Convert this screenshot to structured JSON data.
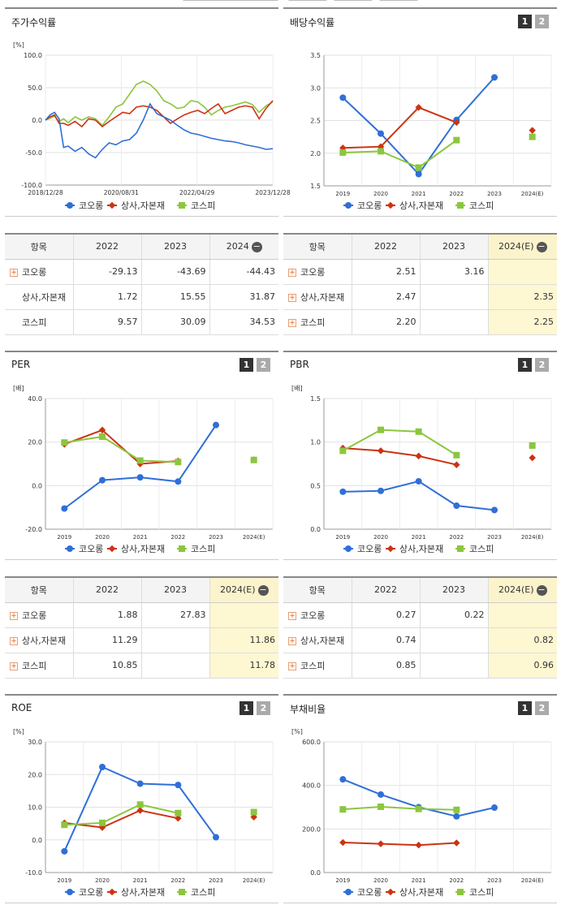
{
  "colors": {
    "kolon": "#2f6fd8",
    "sangsa": "#cc3311",
    "kospi": "#8cc63f",
    "highlight": "#fdf7d2"
  },
  "legend": [
    "코오롱",
    "상사,자본재",
    "코스피"
  ],
  "panels": {
    "stock": {
      "title": "주가수익률"
    },
    "div": {
      "title": "배당수익률",
      "btn1": "1",
      "btn2": "2"
    },
    "per": {
      "title": "PER",
      "btn1": "1",
      "btn2": "2"
    },
    "pbr": {
      "title": "PBR",
      "btn1": "1",
      "btn2": "2"
    },
    "roe": {
      "title": "ROE",
      "btn1": "1",
      "btn2": "2"
    },
    "debt": {
      "title": "부채비율",
      "btn1": "1",
      "btn2": "2"
    }
  },
  "tables": {
    "stock": {
      "headers": [
        "항목",
        "2022",
        "2023",
        "2024"
      ],
      "rows": [
        {
          "name": "코오롱",
          "plus": true,
          "v": [
            "-29.13",
            "-43.69",
            "-44.43"
          ]
        },
        {
          "name": "상사,자본재",
          "plus": false,
          "v": [
            "1.72",
            "15.55",
            "31.87"
          ]
        },
        {
          "name": "코스피",
          "plus": false,
          "v": [
            "9.57",
            "30.09",
            "34.53"
          ]
        }
      ]
    },
    "div": {
      "headers": [
        "항목",
        "2022",
        "2023",
        "2024(E)"
      ],
      "rows": [
        {
          "name": "코오롱",
          "plus": true,
          "v": [
            "2.51",
            "3.16",
            ""
          ]
        },
        {
          "name": "상사,자본재",
          "plus": true,
          "v": [
            "2.47",
            "",
            "2.35"
          ]
        },
        {
          "name": "코스피",
          "plus": true,
          "v": [
            "2.20",
            "",
            "2.25"
          ]
        }
      ]
    },
    "per": {
      "headers": [
        "항목",
        "2022",
        "2023",
        "2024(E)"
      ],
      "rows": [
        {
          "name": "코오롱",
          "plus": true,
          "v": [
            "1.88",
            "27.83",
            ""
          ]
        },
        {
          "name": "상사,자본재",
          "plus": true,
          "v": [
            "11.29",
            "",
            "11.86"
          ]
        },
        {
          "name": "코스피",
          "plus": true,
          "v": [
            "10.85",
            "",
            "11.78"
          ]
        }
      ]
    },
    "pbr": {
      "headers": [
        "항목",
        "2022",
        "2023",
        "2024(E)"
      ],
      "rows": [
        {
          "name": "코오롱",
          "plus": true,
          "v": [
            "0.27",
            "0.22",
            ""
          ]
        },
        {
          "name": "상사,자본재",
          "plus": true,
          "v": [
            "0.74",
            "",
            "0.82"
          ]
        },
        {
          "name": "코스피",
          "plus": true,
          "v": [
            "0.85",
            "",
            "0.96"
          ]
        }
      ]
    }
  },
  "chart_data": [
    {
      "id": "stock",
      "type": "line",
      "title": "주가수익률",
      "unit": "[%]",
      "ylim": [
        -100,
        100
      ],
      "yticks": [
        "100.0",
        "50.0",
        "0.0",
        "-50.0",
        "-100.0"
      ],
      "xticks": [
        "2018/12/28",
        "2020/08/31",
        "2022/04/29",
        "2023/12/28"
      ],
      "x": [
        0,
        0.02,
        0.04,
        0.06,
        0.08,
        0.1,
        0.13,
        0.16,
        0.19,
        0.22,
        0.25,
        0.28,
        0.31,
        0.34,
        0.37,
        0.4,
        0.43,
        0.46,
        0.49,
        0.52,
        0.55,
        0.58,
        0.61,
        0.64,
        0.67,
        0.7,
        0.73,
        0.76,
        0.79,
        0.82,
        0.85,
        0.88,
        0.91,
        0.94,
        0.97,
        1.0
      ],
      "series": [
        {
          "name": "코오롱",
          "values": [
            0,
            8,
            12,
            2,
            -42,
            -40,
            -48,
            -42,
            -52,
            -58,
            -45,
            -35,
            -38,
            -32,
            -30,
            -20,
            0,
            25,
            10,
            5,
            0,
            -8,
            -15,
            -20,
            -22,
            -25,
            -28,
            -30,
            -32,
            -33,
            -35,
            -38,
            -40,
            -42,
            -45,
            -44
          ]
        },
        {
          "name": "상사,자본재",
          "values": [
            0,
            5,
            8,
            -5,
            -5,
            -8,
            -2,
            -10,
            2,
            0,
            -10,
            -2,
            5,
            12,
            10,
            20,
            22,
            20,
            15,
            5,
            -5,
            2,
            8,
            12,
            15,
            10,
            18,
            25,
            10,
            15,
            20,
            22,
            20,
            2,
            18,
            30
          ]
        },
        {
          "name": "코스피",
          "values": [
            0,
            3,
            6,
            -2,
            2,
            -4,
            5,
            0,
            5,
            2,
            -8,
            5,
            20,
            25,
            40,
            55,
            60,
            55,
            45,
            30,
            25,
            18,
            20,
            30,
            28,
            20,
            8,
            15,
            20,
            22,
            25,
            28,
            24,
            12,
            22,
            28
          ]
        }
      ]
    },
    {
      "id": "div",
      "type": "line",
      "title": "배당수익률",
      "ylim": [
        1.5,
        3.5
      ],
      "yticks": [
        "3.5",
        "3.0",
        "2.5",
        "2.0",
        "1.5"
      ],
      "categories": [
        "2019",
        "2020",
        "2021",
        "2022",
        "2023",
        "2024(E)"
      ],
      "series": [
        {
          "name": "코오롱",
          "values": [
            2.85,
            2.3,
            1.68,
            2.51,
            3.16,
            null
          ]
        },
        {
          "name": "상사,자본재",
          "values": [
            2.08,
            2.1,
            2.7,
            2.47,
            null,
            2.35
          ]
        },
        {
          "name": "코스피",
          "values": [
            2.01,
            2.03,
            1.78,
            2.2,
            null,
            2.25
          ]
        }
      ]
    },
    {
      "id": "per",
      "type": "line",
      "title": "PER",
      "unit": "[배]",
      "ylim": [
        -20,
        40
      ],
      "yticks": [
        "40.0",
        "20.0",
        "0.0",
        "-20.0"
      ],
      "categories": [
        "2019",
        "2020",
        "2021",
        "2022",
        "2023",
        "2024(E)"
      ],
      "series": [
        {
          "name": "코오롱",
          "values": [
            -10.5,
            2.5,
            3.8,
            1.88,
            27.83,
            null
          ]
        },
        {
          "name": "상사,자본재",
          "values": [
            19.0,
            25.5,
            10.0,
            11.29,
            null,
            11.86
          ]
        },
        {
          "name": "코스피",
          "values": [
            19.8,
            22.5,
            11.5,
            10.85,
            null,
            11.78
          ]
        }
      ]
    },
    {
      "id": "pbr",
      "type": "line",
      "title": "PBR",
      "unit": "[배]",
      "ylim": [
        0,
        1.5
      ],
      "yticks": [
        "1.5",
        "1.0",
        "0.5",
        "0.0"
      ],
      "categories": [
        "2019",
        "2020",
        "2021",
        "2022",
        "2023",
        "2024(E)"
      ],
      "series": [
        {
          "name": "코오롱",
          "values": [
            0.43,
            0.44,
            0.55,
            0.27,
            0.22,
            null
          ]
        },
        {
          "name": "상사,자본재",
          "values": [
            0.93,
            0.9,
            0.84,
            0.74,
            null,
            0.82
          ]
        },
        {
          "name": "코스피",
          "values": [
            0.9,
            1.14,
            1.12,
            0.85,
            null,
            0.96
          ]
        }
      ]
    },
    {
      "id": "roe",
      "type": "line",
      "title": "ROE",
      "unit": "[%]",
      "ylim": [
        -10,
        30
      ],
      "yticks": [
        "30.0",
        "20.0",
        "10.0",
        "0.0",
        "-10.0"
      ],
      "categories": [
        "2019",
        "2020",
        "2021",
        "2022",
        "2023",
        "2024(E)"
      ],
      "series": [
        {
          "name": "코오롱",
          "values": [
            -3.5,
            22.3,
            17.2,
            16.8,
            0.8,
            null
          ]
        },
        {
          "name": "상사,자본재",
          "values": [
            5.2,
            3.8,
            9.0,
            6.6,
            null,
            7.0
          ]
        },
        {
          "name": "코스피",
          "values": [
            4.6,
            5.2,
            10.8,
            8.2,
            null,
            8.5
          ]
        }
      ]
    },
    {
      "id": "debt",
      "type": "line",
      "title": "부채비율",
      "unit": "[%]",
      "ylim": [
        0,
        600
      ],
      "yticks": [
        "600.0",
        "400.0",
        "200.0",
        "0.0"
      ],
      "categories": [
        "2019",
        "2020",
        "2021",
        "2022",
        "2023",
        "2024(E)"
      ],
      "series": [
        {
          "name": "코오롱",
          "values": [
            428,
            358,
            300,
            258,
            298,
            null
          ]
        },
        {
          "name": "상사,자본재",
          "values": [
            138,
            132,
            126,
            136,
            null,
            null
          ]
        },
        {
          "name": "코스피",
          "values": [
            290,
            302,
            292,
            288,
            null,
            null
          ]
        }
      ]
    }
  ]
}
